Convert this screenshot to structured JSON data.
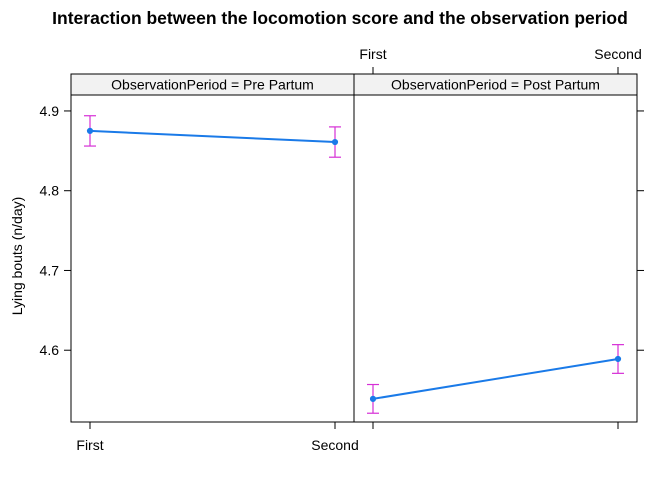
{
  "chart_data": {
    "type": "line",
    "title": "Interaction between the locomotion score and the observation period",
    "xlabel": "",
    "ylabel": "Lying bouts (n/day)",
    "categories": [
      "First",
      "Second"
    ],
    "ylim": [
      4.51,
      4.92
    ],
    "yticks": [
      4.6,
      4.7,
      4.8,
      4.9
    ],
    "ytick_labels": [
      "4.6",
      "4.7",
      "4.8",
      "4.9"
    ],
    "line_color": "#1a7ae8",
    "errorbar_color": "#d62fd6",
    "panels": [
      {
        "strip": "ObservationPeriod = Pre Partum",
        "values": [
          4.875,
          4.861
        ],
        "lower": [
          4.856,
          4.842
        ],
        "upper": [
          4.894,
          4.88
        ]
      },
      {
        "strip": "ObservationPeriod = Post Partum",
        "values": [
          4.539,
          4.589
        ],
        "lower": [
          4.521,
          4.571
        ],
        "upper": [
          4.557,
          4.607
        ]
      }
    ]
  }
}
